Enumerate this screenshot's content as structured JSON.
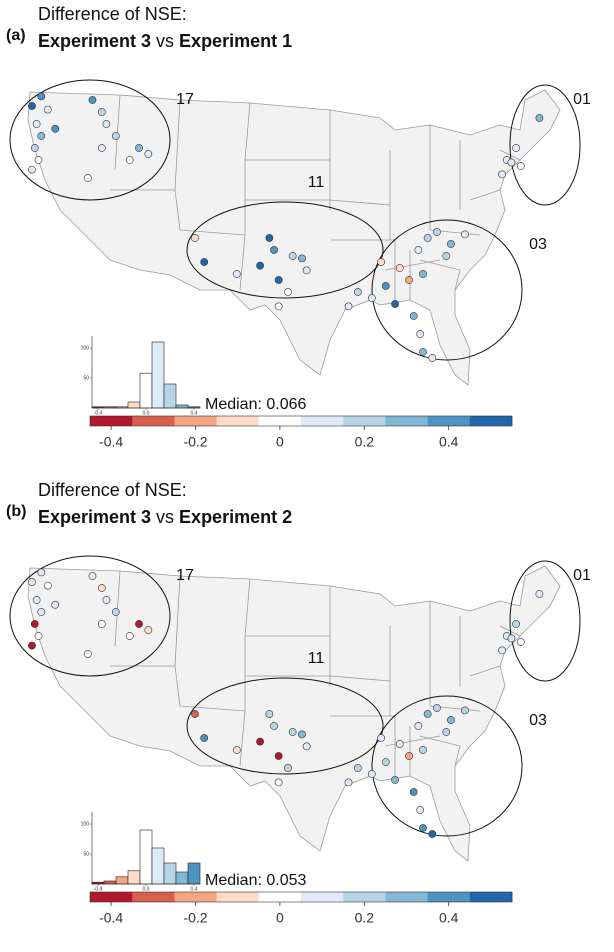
{
  "sites": {
    "lon": [
      -123.5,
      -122.5,
      -121.8,
      -123,
      -122.5,
      -123.2,
      -122.8,
      -123.5,
      -121,
      -117,
      -116,
      -115.5,
      -114.5,
      -116,
      -113,
      -112,
      -111,
      -117.5,
      -106,
      -105,
      -98,
      -97.5,
      -99,
      -97,
      -95.5,
      -94.5,
      -94,
      -96,
      -97,
      -101.5,
      -69,
      -71.5,
      -72.5,
      -71,
      -73,
      -72,
      -80,
      -81,
      -78.5,
      -77,
      -82,
      -79,
      -84,
      -83,
      -81.5,
      -85.5,
      -87,
      -88.5,
      -89.5,
      -84.5,
      -82.5,
      -81.8,
      -81.5,
      -80.5,
      -86
    ],
    "lat": [
      47.5,
      48.3,
      47.2,
      46,
      45,
      44,
      43,
      42.2,
      45.6,
      48,
      47,
      46,
      45,
      44,
      43,
      44,
      43.5,
      41.5,
      36.5,
      34.5,
      36.5,
      35.5,
      34.2,
      33,
      35,
      34.8,
      33.8,
      32,
      30.8,
      33.5,
      46.5,
      44,
      43,
      42.5,
      41.8,
      42.8,
      37,
      36.5,
      36,
      36.8,
      35.5,
      35,
      34,
      33,
      33.5,
      32.5,
      31.5,
      32,
      30.8,
      31,
      30,
      28.5,
      27,
      26.5,
      34.5
    ]
  },
  "chart_data": [
    {
      "type": "map",
      "label": "(a)",
      "title": "Difference of NSE:",
      "subtitle": [
        "Experiment 3",
        "vs",
        "Experiment 1"
      ],
      "regions": [
        "17",
        "11",
        "01",
        "03"
      ],
      "values": [
        0.45,
        0.4,
        0.1,
        0.05,
        0.3,
        0.15,
        0.0,
        0.1,
        0.35,
        0.4,
        0.2,
        0.1,
        0.15,
        0.05,
        0.0,
        0.3,
        0.1,
        0.0,
        -0.15,
        0.45,
        0.45,
        0.35,
        0.45,
        0.45,
        0.2,
        0.3,
        0.1,
        0.0,
        -0.05,
        0.1,
        0.3,
        0.1,
        0.05,
        0.0,
        0.1,
        0.05,
        0.15,
        0.2,
        0.3,
        0.1,
        0.05,
        0.2,
        -0.1,
        -0.2,
        0.3,
        0.4,
        0.1,
        0.2,
        0.05,
        0.45,
        0.3,
        0.1,
        0.25,
        0.1,
        -0.1
      ],
      "median_label": "Median: 0.066",
      "histogram": {
        "bins": [
          -0.45,
          -0.35,
          -0.25,
          -0.15,
          -0.05,
          0.05,
          0.15,
          0.25,
          0.35,
          0.45
        ],
        "counts": [
          2,
          2,
          2,
          10,
          58,
          110,
          40,
          5,
          2
        ],
        "xlim": [
          -0.45,
          0.45
        ],
        "ylim": [
          0,
          120
        ],
        "yticks": [
          50,
          100
        ],
        "xticks": [
          -0.4,
          {
            "value": 0,
            "label": "0.0"
          },
          0.4
        ]
      },
      "colorbar": {
        "clim": [
          -0.45,
          0.55
        ],
        "colors": [
          "#b2182b",
          "#d6604d",
          "#f4a582",
          "#fddbc7",
          "#ffffff",
          "#deebf7",
          "#b6d6e8",
          "#82b7d6",
          "#4d94c3",
          "#2166ac"
        ],
        "ticks": [
          -0.4,
          -0.2,
          0,
          0.2,
          0.4
        ]
      }
    },
    {
      "type": "map",
      "label": "(b)",
      "title": "Difference of NSE:",
      "subtitle": [
        "Experiment 3",
        "vs",
        "Experiment 2"
      ],
      "regions": [
        "17",
        "11",
        "01",
        "03"
      ],
      "values": [
        0.1,
        0.05,
        0.0,
        0.05,
        0.1,
        -0.45,
        0.0,
        -0.5,
        0.1,
        0.05,
        -0.1,
        0.1,
        0.15,
        0.0,
        -0.05,
        -0.45,
        -0.15,
        0.0,
        -0.3,
        0.4,
        0.2,
        0.15,
        -0.4,
        -0.45,
        0.2,
        0.25,
        0.1,
        0.2,
        -0.05,
        -0.1,
        0.1,
        0.2,
        0.1,
        0.0,
        0.05,
        0.1,
        0.2,
        0.25,
        0.3,
        0.15,
        0.1,
        0.2,
        0.1,
        -0.25,
        0.15,
        0.2,
        0.1,
        0.15,
        0.1,
        0.3,
        0.4,
        0.05,
        0.35,
        0.45,
        0.1
      ],
      "median_label": "Median: 0.053",
      "histogram": {
        "bins": [
          -0.45,
          -0.35,
          -0.25,
          -0.15,
          -0.05,
          0.05,
          0.15,
          0.25,
          0.35,
          0.45
        ],
        "counts": [
          3,
          5,
          12,
          22,
          90,
          60,
          35,
          20,
          35
        ],
        "xlim": [
          -0.45,
          0.45
        ],
        "ylim": [
          0,
          120
        ],
        "yticks": [
          50,
          100
        ],
        "xticks": [
          -0.4,
          {
            "value": 0,
            "label": "0.0"
          },
          0.4
        ]
      },
      "colorbar": {
        "clim": [
          -0.45,
          0.55
        ],
        "colors": [
          "#b2182b",
          "#d6604d",
          "#f4a582",
          "#fddbc7",
          "#ffffff",
          "#deebf7",
          "#b6d6e8",
          "#82b7d6",
          "#4d94c3",
          "#2166ac"
        ],
        "ticks": [
          -0.4,
          -0.2,
          0,
          0.2,
          0.4
        ]
      }
    }
  ]
}
